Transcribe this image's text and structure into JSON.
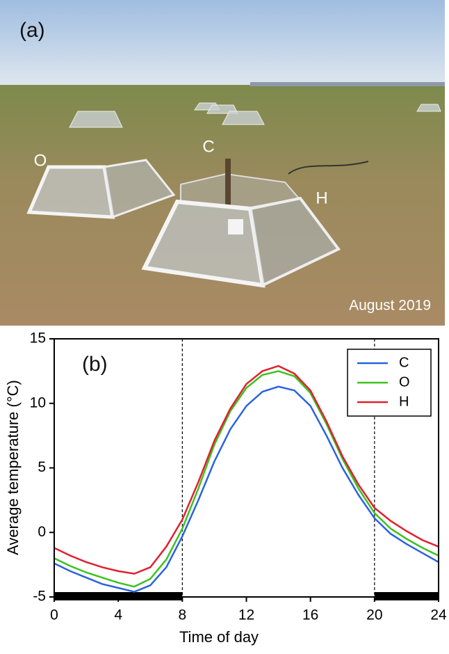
{
  "photo": {
    "panel_label": "(a)",
    "plot_labels": [
      "O",
      "C",
      "H"
    ],
    "caption": "August 2019"
  },
  "chart_data": {
    "type": "line",
    "panel_label": "(b)",
    "x_label": "Time of day",
    "y_label": "Average temperature (°C)",
    "x": [
      0,
      1,
      2,
      3,
      4,
      5,
      6,
      7,
      8,
      9,
      10,
      11,
      12,
      13,
      14,
      15,
      16,
      17,
      18,
      19,
      20,
      21,
      22,
      23,
      24
    ],
    "series": [
      {
        "name": "C",
        "color": "#2a62e0",
        "values": [
          -2.4,
          -3.0,
          -3.5,
          -4.0,
          -4.3,
          -4.6,
          -4.1,
          -2.7,
          -0.3,
          2.5,
          5.5,
          8.0,
          9.8,
          10.9,
          11.3,
          11.0,
          9.8,
          7.5,
          5.0,
          2.9,
          1.1,
          -0.1,
          -0.9,
          -1.6,
          -2.3
        ]
      },
      {
        "name": "O",
        "color": "#3cc21e",
        "values": [
          -2.0,
          -2.6,
          -3.1,
          -3.5,
          -3.9,
          -4.2,
          -3.6,
          -2.1,
          0.3,
          3.4,
          6.8,
          9.4,
          11.2,
          12.2,
          12.5,
          12.1,
          10.8,
          8.4,
          5.7,
          3.4,
          1.5,
          0.3,
          -0.5,
          -1.2,
          -1.8
        ]
      },
      {
        "name": "H",
        "color": "#e02030",
        "values": [
          -1.2,
          -1.8,
          -2.3,
          -2.7,
          -3.0,
          -3.2,
          -2.7,
          -1.1,
          1.0,
          3.9,
          7.1,
          9.6,
          11.5,
          12.5,
          12.9,
          12.3,
          11.0,
          8.6,
          5.9,
          3.7,
          1.9,
          0.9,
          0.1,
          -0.6,
          -1.1
        ]
      }
    ],
    "xlim": [
      0,
      24
    ],
    "xticks": [
      0,
      4,
      8,
      12,
      16,
      20,
      24
    ],
    "ylim": [
      -5,
      15
    ],
    "yticks": [
      -5,
      0,
      5,
      10,
      15
    ],
    "dashed_lines": [
      8,
      20
    ],
    "night_periods": [
      [
        0,
        8
      ],
      [
        20,
        24
      ]
    ],
    "legend": "upper right"
  }
}
